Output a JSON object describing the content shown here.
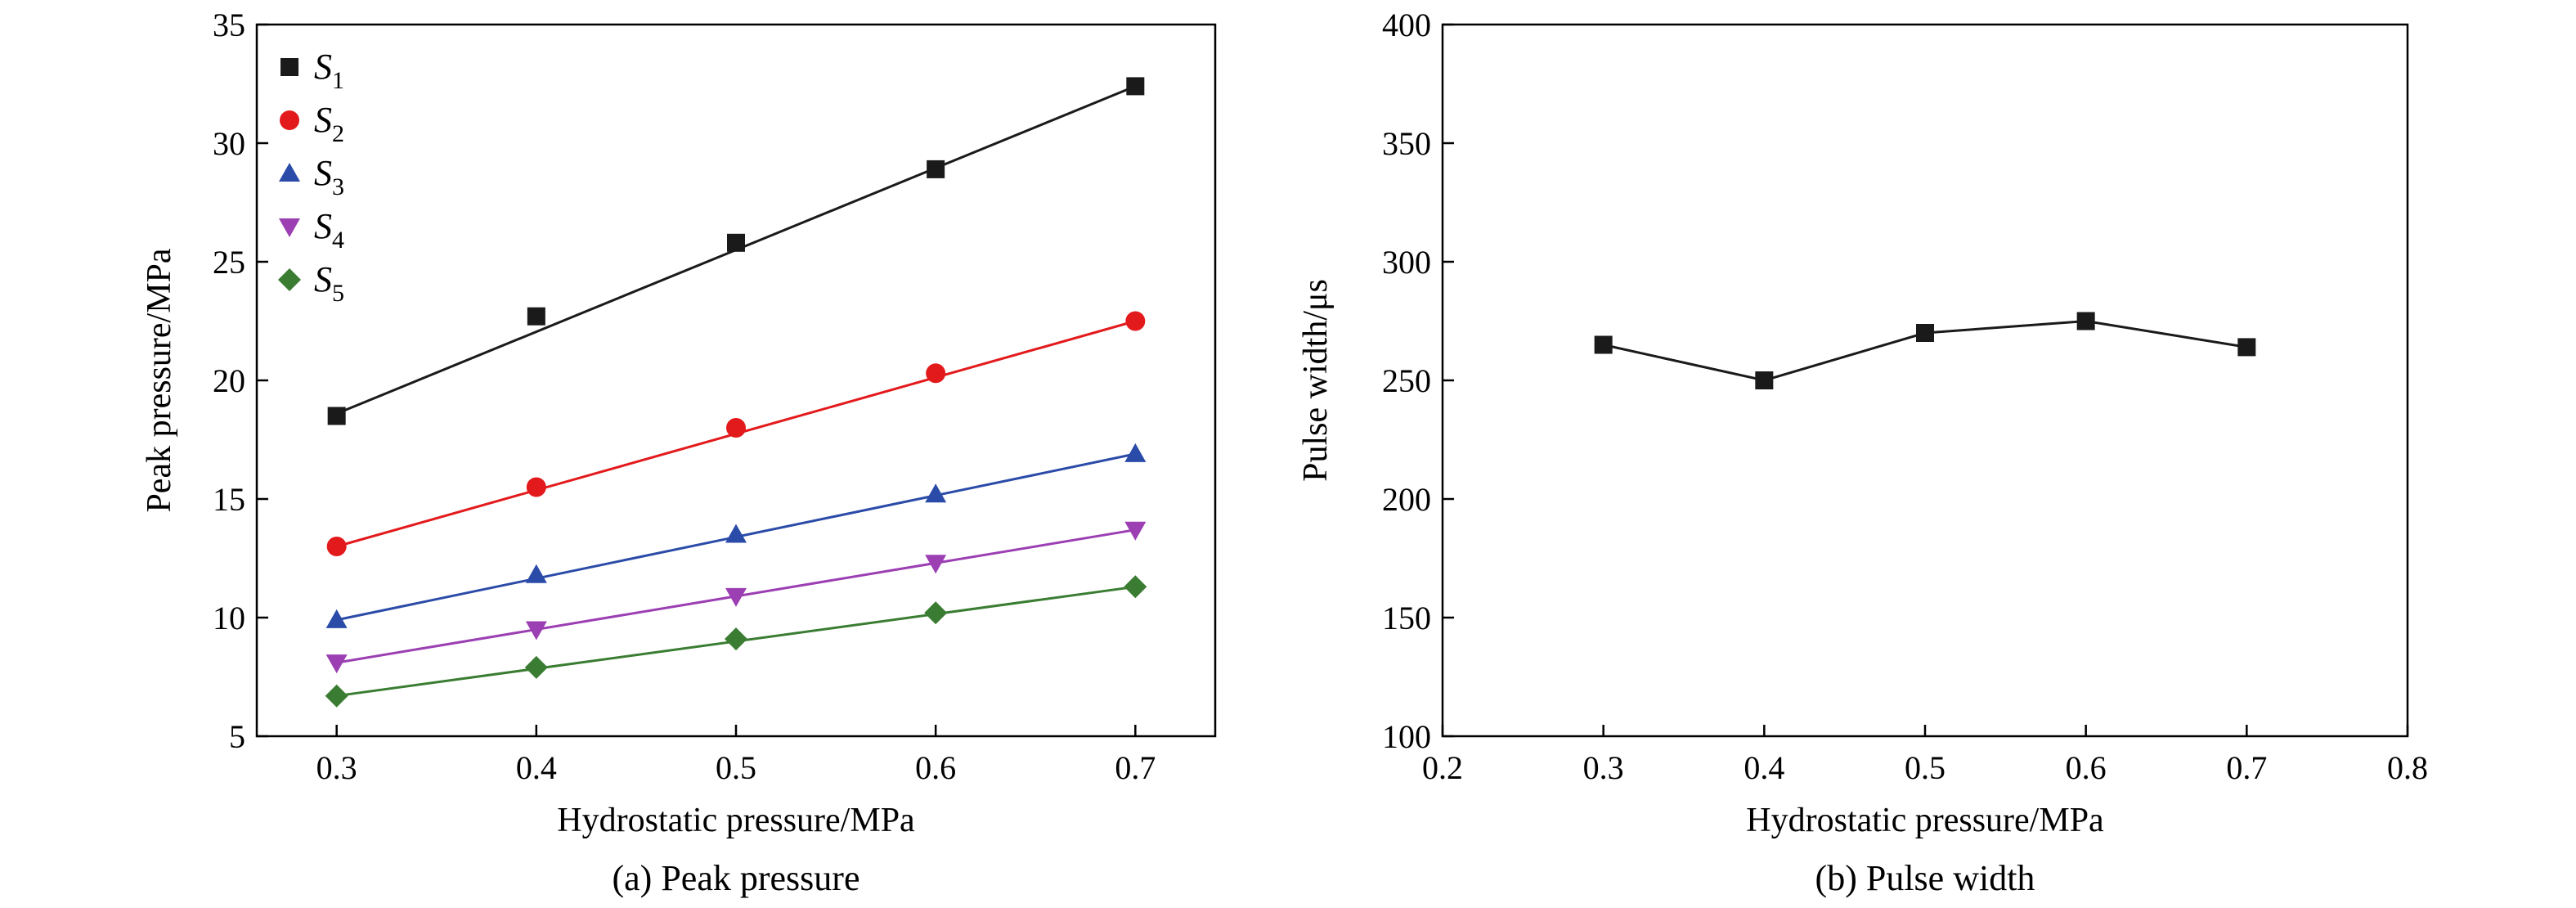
{
  "chart_data": [
    {
      "type": "scatter",
      "title": "",
      "caption": "(a) Peak pressure",
      "xlabel": "Hydrostatic pressure/MPa",
      "ylabel": "Peak pressure/MPa",
      "xlim": [
        0.26,
        0.74
      ],
      "ylim": [
        5,
        35
      ],
      "xticks": [
        0.3,
        0.4,
        0.5,
        0.6,
        0.7
      ],
      "yticks": [
        5,
        10,
        15,
        20,
        25,
        30,
        35
      ],
      "legend_position": "top-left",
      "series": [
        {
          "name": "S",
          "subscript": "1",
          "marker": "square",
          "color": "#1a1a1a",
          "x": [
            0.3,
            0.4,
            0.5,
            0.6,
            0.7
          ],
          "values": [
            18.5,
            22.7,
            25.8,
            28.9,
            32.4
          ],
          "fit": [
            18.6,
            32.4
          ]
        },
        {
          "name": "S",
          "subscript": "2",
          "marker": "circle",
          "color": "#e31a1c",
          "x": [
            0.3,
            0.4,
            0.5,
            0.6,
            0.7
          ],
          "values": [
            13.0,
            15.5,
            18.0,
            20.3,
            22.5
          ],
          "fit": [
            13.0,
            22.5
          ]
        },
        {
          "name": "S",
          "subscript": "3",
          "marker": "triangle-up",
          "color": "#2b4ba8",
          "x": [
            0.3,
            0.4,
            0.5,
            0.6,
            0.7
          ],
          "values": [
            9.9,
            11.8,
            13.5,
            15.2,
            16.9
          ],
          "fit": [
            9.9,
            16.9
          ]
        },
        {
          "name": "S",
          "subscript": "4",
          "marker": "triangle-down",
          "color": "#9b3fb3",
          "x": [
            0.3,
            0.4,
            0.5,
            0.6,
            0.7
          ],
          "values": [
            8.1,
            9.5,
            10.9,
            12.3,
            13.7
          ],
          "fit": [
            8.1,
            13.7
          ]
        },
        {
          "name": "S",
          "subscript": "5",
          "marker": "diamond",
          "color": "#3a7d32",
          "x": [
            0.3,
            0.4,
            0.5,
            0.6,
            0.7
          ],
          "values": [
            6.7,
            7.9,
            9.1,
            10.2,
            11.3
          ],
          "fit": [
            6.7,
            11.3
          ]
        }
      ]
    },
    {
      "type": "line",
      "title": "",
      "caption": "(b) Pulse width",
      "xlabel": "Hydrostatic pressure/MPa",
      "ylabel": "Pulse width/μs",
      "xlim": [
        0.2,
        0.8
      ],
      "ylim": [
        100,
        400
      ],
      "xticks": [
        0.2,
        0.3,
        0.4,
        0.5,
        0.6,
        0.7,
        0.8
      ],
      "yticks": [
        100,
        150,
        200,
        250,
        300,
        350,
        400
      ],
      "series": [
        {
          "name": "Pulse width",
          "marker": "square",
          "color": "#1a1a1a",
          "x": [
            0.3,
            0.4,
            0.5,
            0.6,
            0.7
          ],
          "values": [
            265,
            250,
            270,
            275,
            264
          ]
        }
      ]
    }
  ]
}
